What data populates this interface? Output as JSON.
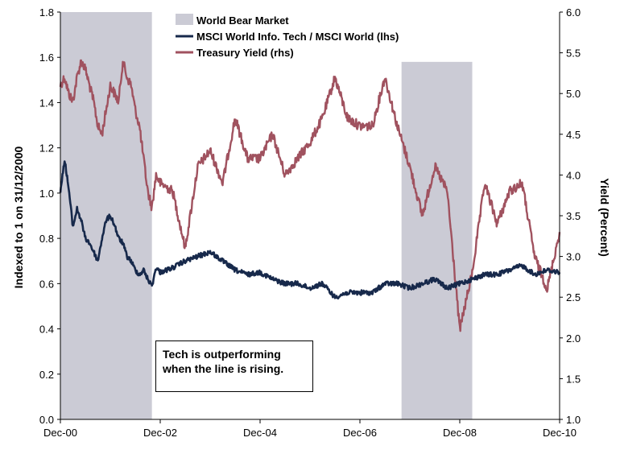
{
  "chart_data": {
    "type": "line",
    "x_tick_labels": [
      "Dec-00",
      "Dec-02",
      "Dec-04",
      "Dec-06",
      "Dec-08",
      "Dec-10"
    ],
    "xlim": [
      "2000-12",
      "2010-12"
    ],
    "y_left": {
      "label": "Indexed to 1 on 31/12/2000",
      "ylim": [
        0,
        1.8
      ],
      "ticks": [
        "0.0",
        "0.2",
        "0.4",
        "0.6",
        "0.8",
        "1.0",
        "1.2",
        "1.4",
        "1.6",
        "1.8"
      ]
    },
    "y_right": {
      "label": "Yield (Percent)",
      "ylim": [
        1.0,
        6.0
      ],
      "ticks": [
        "1.0",
        "1.5",
        "2.0",
        "2.5",
        "3.0",
        "3.5",
        "4.0",
        "4.5",
        "5.0",
        "5.5",
        "6.0"
      ]
    },
    "legend_position": "top-center",
    "bear_markets": [
      {
        "name": "World Bear Market",
        "start": "2000-12",
        "end": "2002-10"
      },
      {
        "name": "World Bear Market",
        "start": "2007-10",
        "end": "2009-03"
      }
    ],
    "series": [
      {
        "name": "MSCI World Info. Tech / MSCI World (lhs)",
        "axis": "left",
        "color": "#17294b",
        "points": [
          [
            "2000-12",
            1.0
          ],
          [
            "2001-01",
            1.15
          ],
          [
            "2001-02",
            1.02
          ],
          [
            "2001-03",
            0.85
          ],
          [
            "2001-04",
            0.93
          ],
          [
            "2001-05",
            0.88
          ],
          [
            "2001-06",
            0.8
          ],
          [
            "2001-07",
            0.78
          ],
          [
            "2001-08",
            0.74
          ],
          [
            "2001-09",
            0.7
          ],
          [
            "2001-10",
            0.8
          ],
          [
            "2001-11",
            0.88
          ],
          [
            "2001-12",
            0.9
          ],
          [
            "2002-01",
            0.86
          ],
          [
            "2002-02",
            0.8
          ],
          [
            "2002-03",
            0.78
          ],
          [
            "2002-04",
            0.72
          ],
          [
            "2002-05",
            0.7
          ],
          [
            "2002-06",
            0.66
          ],
          [
            "2002-07",
            0.64
          ],
          [
            "2002-08",
            0.66
          ],
          [
            "2002-09",
            0.62
          ],
          [
            "2002-10",
            0.59
          ],
          [
            "2002-11",
            0.67
          ],
          [
            "2002-12",
            0.65
          ],
          [
            "2003-03",
            0.67
          ],
          [
            "2003-06",
            0.7
          ],
          [
            "2003-09",
            0.72
          ],
          [
            "2003-12",
            0.74
          ],
          [
            "2004-03",
            0.7
          ],
          [
            "2004-06",
            0.66
          ],
          [
            "2004-09",
            0.64
          ],
          [
            "2004-12",
            0.65
          ],
          [
            "2005-03",
            0.62
          ],
          [
            "2005-06",
            0.6
          ],
          [
            "2005-09",
            0.6
          ],
          [
            "2005-12",
            0.58
          ],
          [
            "2006-03",
            0.6
          ],
          [
            "2006-06",
            0.54
          ],
          [
            "2006-09",
            0.56
          ],
          [
            "2006-12",
            0.56
          ],
          [
            "2007-03",
            0.56
          ],
          [
            "2007-06",
            0.6
          ],
          [
            "2007-09",
            0.6
          ],
          [
            "2007-12",
            0.58
          ],
          [
            "2008-03",
            0.6
          ],
          [
            "2008-06",
            0.62
          ],
          [
            "2008-09",
            0.58
          ],
          [
            "2008-12",
            0.6
          ],
          [
            "2009-03",
            0.62
          ],
          [
            "2009-06",
            0.64
          ],
          [
            "2009-09",
            0.64
          ],
          [
            "2009-12",
            0.66
          ],
          [
            "2010-03",
            0.68
          ],
          [
            "2010-06",
            0.64
          ],
          [
            "2010-09",
            0.66
          ],
          [
            "2010-12",
            0.65
          ]
        ]
      },
      {
        "name": "Treasury Yield (rhs)",
        "axis": "right",
        "color": "#a0525f",
        "points": [
          [
            "2000-12",
            5.1
          ],
          [
            "2001-01",
            5.2
          ],
          [
            "2001-02",
            5.0
          ],
          [
            "2001-03",
            4.9
          ],
          [
            "2001-04",
            5.2
          ],
          [
            "2001-05",
            5.4
          ],
          [
            "2001-06",
            5.3
          ],
          [
            "2001-07",
            5.1
          ],
          [
            "2001-08",
            4.9
          ],
          [
            "2001-09",
            4.6
          ],
          [
            "2001-10",
            4.5
          ],
          [
            "2001-11",
            4.8
          ],
          [
            "2001-12",
            5.1
          ],
          [
            "2002-01",
            5.0
          ],
          [
            "2002-02",
            4.9
          ],
          [
            "2002-03",
            5.4
          ],
          [
            "2002-04",
            5.2
          ],
          [
            "2002-05",
            5.1
          ],
          [
            "2002-06",
            4.8
          ],
          [
            "2002-07",
            4.6
          ],
          [
            "2002-08",
            4.2
          ],
          [
            "2002-09",
            3.8
          ],
          [
            "2002-10",
            3.6
          ],
          [
            "2002-11",
            4.0
          ],
          [
            "2002-12",
            3.9
          ],
          [
            "2003-03",
            3.8
          ],
          [
            "2003-06",
            3.1
          ],
          [
            "2003-09",
            4.1
          ],
          [
            "2003-12",
            4.3
          ],
          [
            "2004-03",
            3.9
          ],
          [
            "2004-06",
            4.7
          ],
          [
            "2004-09",
            4.2
          ],
          [
            "2004-12",
            4.2
          ],
          [
            "2005-03",
            4.5
          ],
          [
            "2005-06",
            4.0
          ],
          [
            "2005-09",
            4.2
          ],
          [
            "2005-12",
            4.4
          ],
          [
            "2006-03",
            4.7
          ],
          [
            "2006-06",
            5.2
          ],
          [
            "2006-09",
            4.7
          ],
          [
            "2006-12",
            4.6
          ],
          [
            "2007-03",
            4.6
          ],
          [
            "2007-06",
            5.2
          ],
          [
            "2007-09",
            4.6
          ],
          [
            "2007-12",
            4.1
          ],
          [
            "2008-03",
            3.5
          ],
          [
            "2008-06",
            4.1
          ],
          [
            "2008-09",
            3.8
          ],
          [
            "2008-12",
            2.1
          ],
          [
            "2009-03",
            2.8
          ],
          [
            "2009-06",
            3.9
          ],
          [
            "2009-09",
            3.4
          ],
          [
            "2009-12",
            3.8
          ],
          [
            "2010-03",
            3.9
          ],
          [
            "2010-06",
            3.0
          ],
          [
            "2010-09",
            2.6
          ],
          [
            "2010-12",
            3.3
          ]
        ]
      }
    ]
  },
  "legend": {
    "items": [
      {
        "label": "World Bear Market",
        "swatch": "box",
        "color": "#cbcbd5"
      },
      {
        "label": "MSCI World Info. Tech / MSCI World (lhs)",
        "swatch": "line",
        "color": "#17294b"
      },
      {
        "label": "Treasury Yield (rhs)",
        "swatch": "line",
        "color": "#a0525f"
      }
    ]
  },
  "annotation": {
    "line1": "Tech is outperforming",
    "line2": "when the line is rising."
  }
}
